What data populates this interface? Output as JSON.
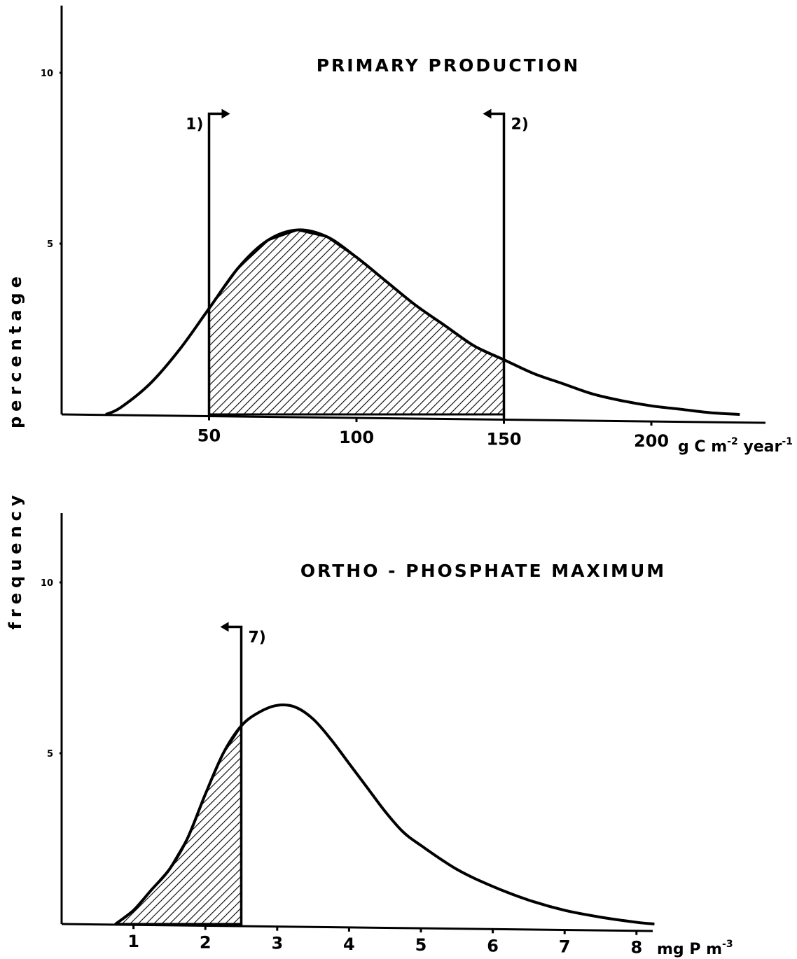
{
  "chart_data": [
    {
      "type": "area",
      "title": "PRIMARY PRODUCTION",
      "ylabel": "percentage",
      "xunit": {
        "base": "g C m",
        "exp1": "-2",
        "mid": " year",
        "exp2": "-1"
      },
      "xlim": [
        0,
        235
      ],
      "ylim": [
        0,
        12
      ],
      "x_ticks": [
        50,
        100,
        150,
        200
      ],
      "y_ticks": [
        5,
        10
      ],
      "grid": false,
      "series": [
        {
          "x": [
            15,
            20,
            30,
            40,
            50,
            60,
            70,
            80,
            90,
            100,
            110,
            120,
            130,
            140,
            150,
            160,
            170,
            180,
            190,
            200,
            210,
            220,
            230
          ],
          "values": [
            0.0,
            0.2,
            0.9,
            1.9,
            3.1,
            4.3,
            5.1,
            5.4,
            5.2,
            4.6,
            3.9,
            3.2,
            2.6,
            2.0,
            1.6,
            1.2,
            0.9,
            0.6,
            0.4,
            0.25,
            0.15,
            0.05,
            0.0
          ]
        }
      ],
      "shaded_range": [
        50,
        150
      ],
      "markers": [
        {
          "x": 50,
          "label": "1)",
          "direction": "right",
          "top": 8.8
        },
        {
          "x": 150,
          "label": "2)",
          "direction": "left",
          "top": 8.8
        }
      ]
    },
    {
      "type": "area",
      "title": "ORTHO - PHOSPHATE MAXIMUM",
      "ylabel": "frequency",
      "xunit": {
        "base": "mg P m",
        "exp1": "-3",
        "mid": "",
        "exp2": ""
      },
      "xlim": [
        0,
        9
      ],
      "ylim": [
        0,
        12
      ],
      "x_ticks": [
        1,
        2,
        3,
        4,
        5,
        6,
        7,
        8
      ],
      "y_ticks": [
        5,
        10
      ],
      "grid": false,
      "series": [
        {
          "x": [
            0.75,
            1.0,
            1.25,
            1.5,
            1.75,
            2.0,
            2.25,
            2.5,
            2.75,
            3.0,
            3.25,
            3.5,
            3.75,
            4.0,
            4.25,
            4.5,
            4.75,
            5.0,
            5.5,
            6.0,
            6.5,
            7.0,
            7.5,
            8.0,
            8.25
          ],
          "values": [
            0.0,
            0.4,
            1.0,
            1.6,
            2.5,
            3.8,
            5.0,
            5.8,
            6.2,
            6.4,
            6.35,
            6.0,
            5.4,
            4.7,
            4.0,
            3.3,
            2.7,
            2.3,
            1.6,
            1.1,
            0.7,
            0.4,
            0.2,
            0.05,
            0.0
          ]
        }
      ],
      "shaded_range": [
        0.75,
        2.5
      ],
      "markers": [
        {
          "x": 2.5,
          "label": "7)",
          "direction": "left",
          "top": 8.7
        }
      ]
    }
  ]
}
